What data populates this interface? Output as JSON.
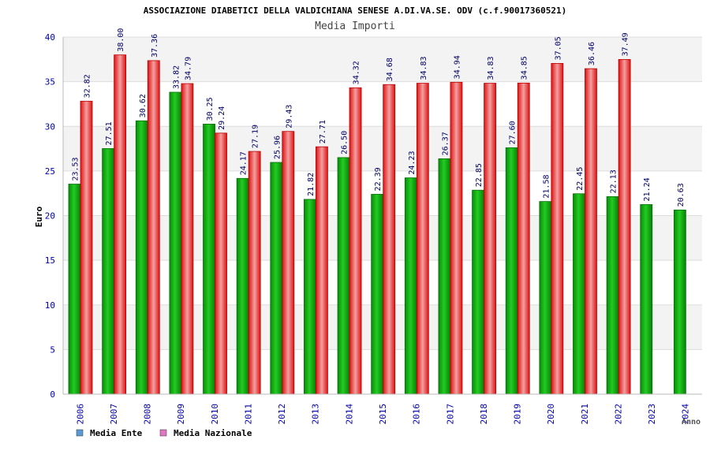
{
  "chart_data": {
    "type": "bar",
    "title": "ASSOCIAZIONE DIABETICI DELLA VALDICHIANA SENESE A.DI.VA.SE. ODV (c.f.90017360521)",
    "subtitle": "Media Importi",
    "xlabel": "Anno",
    "ylabel": "Euro",
    "ylim": [
      0,
      40
    ],
    "yticks": [
      0,
      5,
      10,
      15,
      20,
      25,
      30,
      35,
      40
    ],
    "grid": true,
    "legend_position": "bottom-left",
    "categories": [
      "2006",
      "2007",
      "2008",
      "2009",
      "2010",
      "2011",
      "2012",
      "2013",
      "2014",
      "2015",
      "2016",
      "2017",
      "2018",
      "2019",
      "2020",
      "2021",
      "2022",
      "2023",
      "2024"
    ],
    "series": [
      {
        "name": "Media Ente",
        "legend_color": "#5b9bd5",
        "bar_color": "#10b010",
        "values": [
          23.53,
          27.51,
          30.62,
          33.82,
          30.25,
          24.17,
          25.96,
          21.82,
          26.5,
          22.39,
          24.23,
          26.37,
          22.85,
          27.6,
          21.58,
          22.45,
          22.13,
          21.24,
          20.63
        ],
        "labels": [
          "23.53",
          "27.51",
          "30.62",
          "33.82",
          "30.25",
          "24.17",
          "25.96",
          "21.82",
          "26.50",
          "22.39",
          "24.23",
          "26.37",
          "22.85",
          "27.60",
          "21.58",
          "22.45",
          "22.13",
          "21.24",
          "20.63"
        ]
      },
      {
        "name": "Media Nazionale",
        "legend_color": "#e377c2",
        "bar_color": "#ee2222",
        "values": [
          32.82,
          38.0,
          37.36,
          34.79,
          29.24,
          27.19,
          29.43,
          27.71,
          34.32,
          34.68,
          34.83,
          34.94,
          34.83,
          34.85,
          37.05,
          36.46,
          37.49,
          null,
          null
        ],
        "labels": [
          "32.82",
          "38.00",
          "37.36",
          "34.79",
          "29.24",
          "27.19",
          "29.43",
          "27.71",
          "34.32",
          "34.68",
          "34.83",
          "34.94",
          "34.83",
          "34.85",
          "37.05",
          "36.46",
          "37.49",
          null,
          null
        ]
      }
    ]
  }
}
